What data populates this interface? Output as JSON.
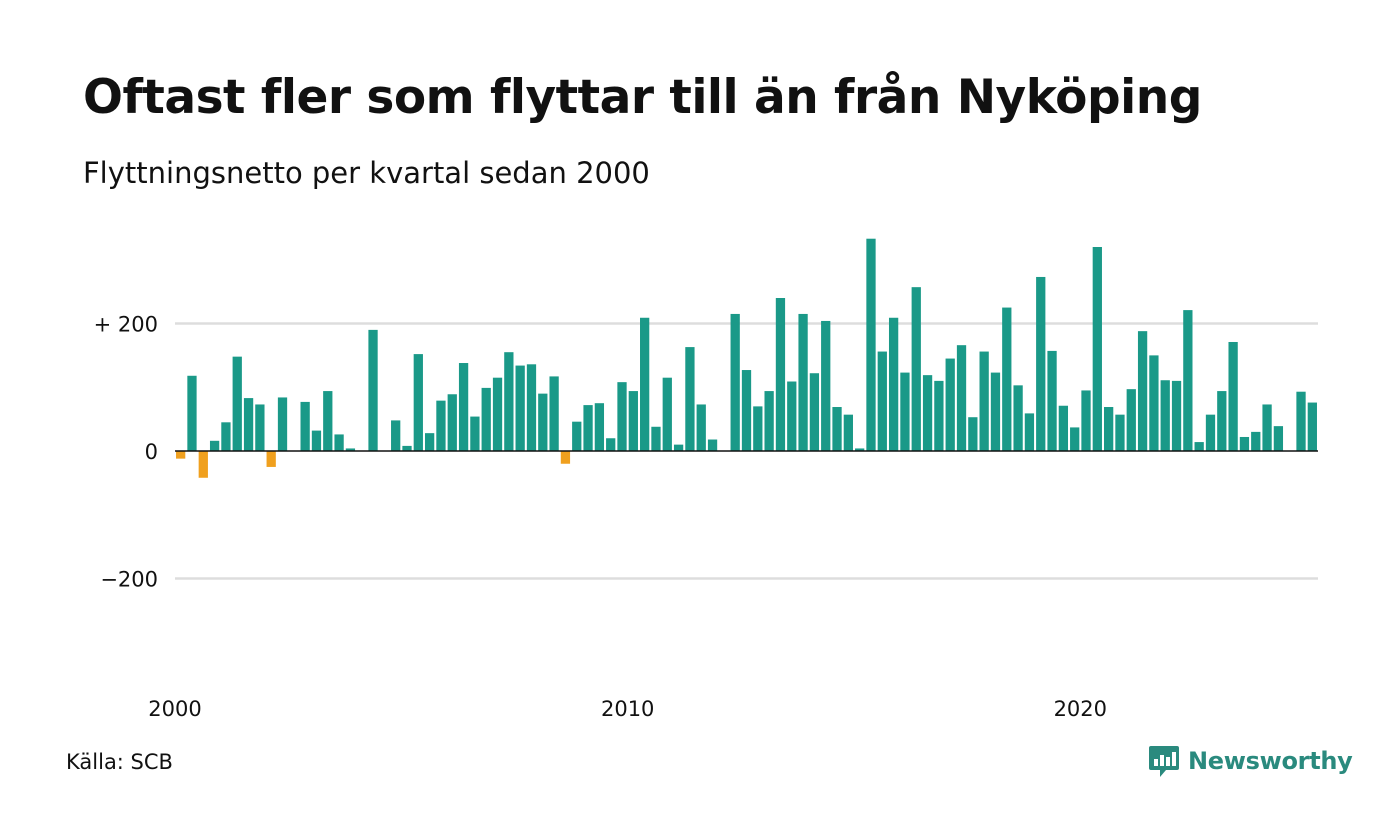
{
  "header": {
    "title": "Oftast fler som flyttar till än från Nyköping",
    "subtitle": "Flyttningsnetto per kvartal sedan 2000"
  },
  "footer": {
    "source": "Källa: SCB",
    "brand": "Newsworthy"
  },
  "colors": {
    "positive": "#1a9988",
    "negative": "#f0a01e",
    "grid": "#dddddd",
    "brand": "#2a8a7e"
  },
  "chart_data": {
    "type": "bar",
    "title": "Oftast fler som flyttar till än från Nyköping",
    "subtitle": "Flyttningsnetto per kvartal sedan 2000",
    "xlabel": "",
    "ylabel": "",
    "ylim": [
      -380,
      340
    ],
    "y_ticks": [
      {
        "value": 200,
        "label": "+ 200"
      },
      {
        "value": 0,
        "label": "0"
      },
      {
        "value": -200,
        "label": "−200"
      }
    ],
    "x_ticks": [
      {
        "year": 2000,
        "label": "2000"
      },
      {
        "year": 2010,
        "label": "2010"
      },
      {
        "year": 2020,
        "label": "2020"
      }
    ],
    "start_year": 2000,
    "frequency": "quarter",
    "grid": true,
    "values": [
      -12,
      118,
      -42,
      16,
      45,
      148,
      83,
      73,
      -25,
      84,
      0,
      77,
      32,
      94,
      26,
      4,
      0,
      190,
      0,
      48,
      8,
      152,
      28,
      79,
      89,
      138,
      54,
      99,
      115,
      155,
      134,
      136,
      90,
      117,
      -20,
      46,
      72,
      75,
      20,
      108,
      94,
      209,
      38,
      115,
      10,
      163,
      73,
      18,
      0,
      215,
      127,
      70,
      94,
      240,
      109,
      215,
      122,
      204,
      69,
      57,
      4,
      333,
      156,
      209,
      123,
      257,
      119,
      110,
      145,
      166,
      53,
      156,
      123,
      225,
      103,
      59,
      273,
      157,
      71,
      37,
      95,
      320,
      69,
      57,
      97,
      188,
      150,
      111,
      110,
      221,
      14,
      57,
      94,
      171,
      22,
      30,
      73,
      39,
      0,
      93,
      76
    ]
  }
}
